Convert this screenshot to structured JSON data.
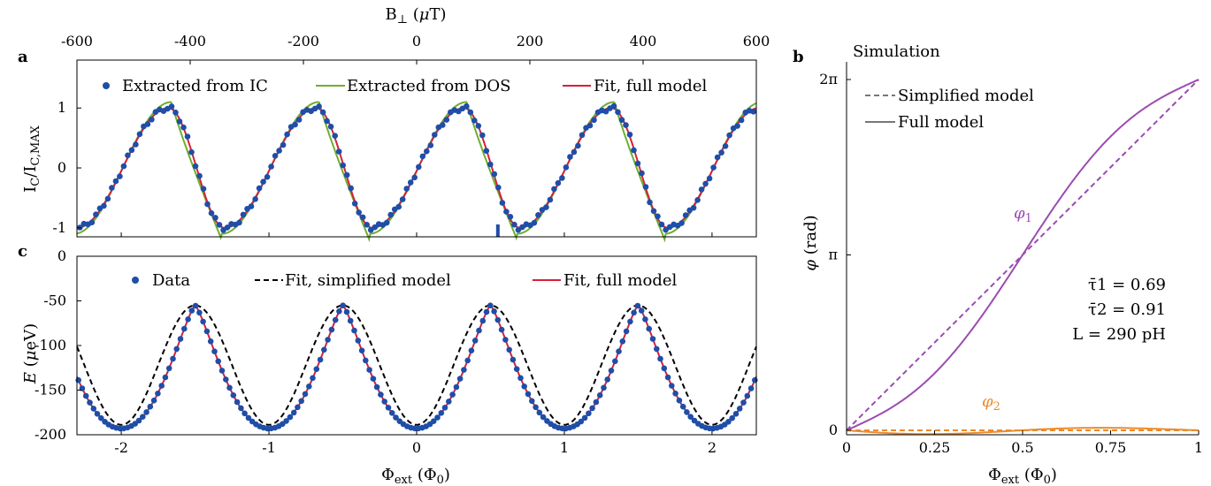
{
  "panels": {
    "a": "a",
    "b": "b",
    "c": "c"
  },
  "chart_data": [
    {
      "id": "a",
      "type": "scatter",
      "top_xlabel": "B⊥ (μT)",
      "top_xticks": [
        "-600",
        "-400",
        "-200",
        "0",
        "200",
        "400",
        "600"
      ],
      "top_xlim": [
        -600,
        600
      ],
      "ylabel": "IC/IC,MAX",
      "xlim": [
        -2.3,
        2.3
      ],
      "ylim": [
        -1.15,
        1.8
      ],
      "yticks": [
        "-1",
        "0",
        "1"
      ],
      "legend": [
        "Extracted from I_C",
        "Extracted from DOS",
        "Fit, full model"
      ],
      "legend_position": "top",
      "marker_x": 0.55,
      "colors": {
        "data": "#1f4ea8",
        "dos": "#6fae2e",
        "fit": "#d6203a"
      },
      "series_note": "oscillation period 1 Φ0; minima near Φ = -2, -1, 0, 1, 2 shifted; extracted data follows fit"
    },
    {
      "id": "c",
      "type": "scatter",
      "xlabel": "Φext (Φ0)",
      "ylabel": "E (μeV)",
      "xlim": [
        -2.3,
        2.3
      ],
      "ylim": [
        -200,
        0
      ],
      "xticks": [
        "-2",
        "-1",
        "0",
        "1",
        "2"
      ],
      "yticks": [
        "0",
        "-50",
        "-100",
        "-150",
        "-200"
      ],
      "legend": [
        "Data",
        "Fit, simplified model",
        "Fit, full model"
      ],
      "legend_position": "top",
      "peaks_x": [
        -1.5,
        -0.5,
        0.5,
        1.5
      ],
      "peak_value": -55,
      "min_value": -193,
      "colors": {
        "data": "#1f4ea8",
        "simplified": "#000000",
        "fit": "#d6203a"
      }
    },
    {
      "id": "b",
      "type": "line",
      "title": "Simulation",
      "xlabel": "Φext (Φ0)",
      "ylabel": "φ (rad)",
      "xlim": [
        0,
        1
      ],
      "ylim": [
        -0.08,
        6.6
      ],
      "xticks": [
        "0",
        "0.25",
        "0.5",
        "0.75",
        "1"
      ],
      "yticks": [
        "0",
        "π",
        "2π"
      ],
      "legend": [
        "Simplified model",
        "Full model"
      ],
      "legend_position": "top-left",
      "curve_labels": [
        "φ1",
        "φ2"
      ],
      "params": [
        "τ̄1 = 0.69",
        "τ̄2 = 0.91",
        "L = 290 pH"
      ],
      "colors": {
        "phi1": "#9b4bb0",
        "phi2": "#ec8a2a"
      }
    }
  ]
}
